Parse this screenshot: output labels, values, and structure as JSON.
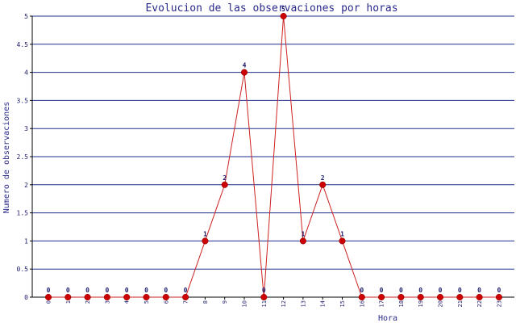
{
  "chart_data": {
    "type": "line",
    "title": "Evolucion de las observaciones por horas",
    "xlabel": "Hora",
    "ylabel": "Numero de observaciones",
    "categories": [
      "0",
      "1",
      "2",
      "3",
      "4",
      "5",
      "6",
      "7",
      "8",
      "9",
      "10",
      "11",
      "12",
      "13",
      "14",
      "15",
      "16",
      "17",
      "18",
      "19",
      "20",
      "21",
      "22",
      "23"
    ],
    "values": [
      0,
      0,
      0,
      0,
      0,
      0,
      0,
      0,
      1,
      2,
      4,
      0,
      5,
      1,
      2,
      1,
      0,
      0,
      0,
      0,
      0,
      0,
      0,
      0
    ],
    "yticks": [
      "0",
      "0.5",
      "1",
      "1.5",
      "2",
      "2.5",
      "3",
      "3.5",
      "4",
      "4.5",
      "5"
    ],
    "ylim": [
      0,
      5
    ],
    "grid": true,
    "data_labels": true,
    "colors": {
      "line": "#cc2222",
      "marker": "#cc0000",
      "grid": "#1f2f8c",
      "text": "#2a2a8a"
    }
  }
}
